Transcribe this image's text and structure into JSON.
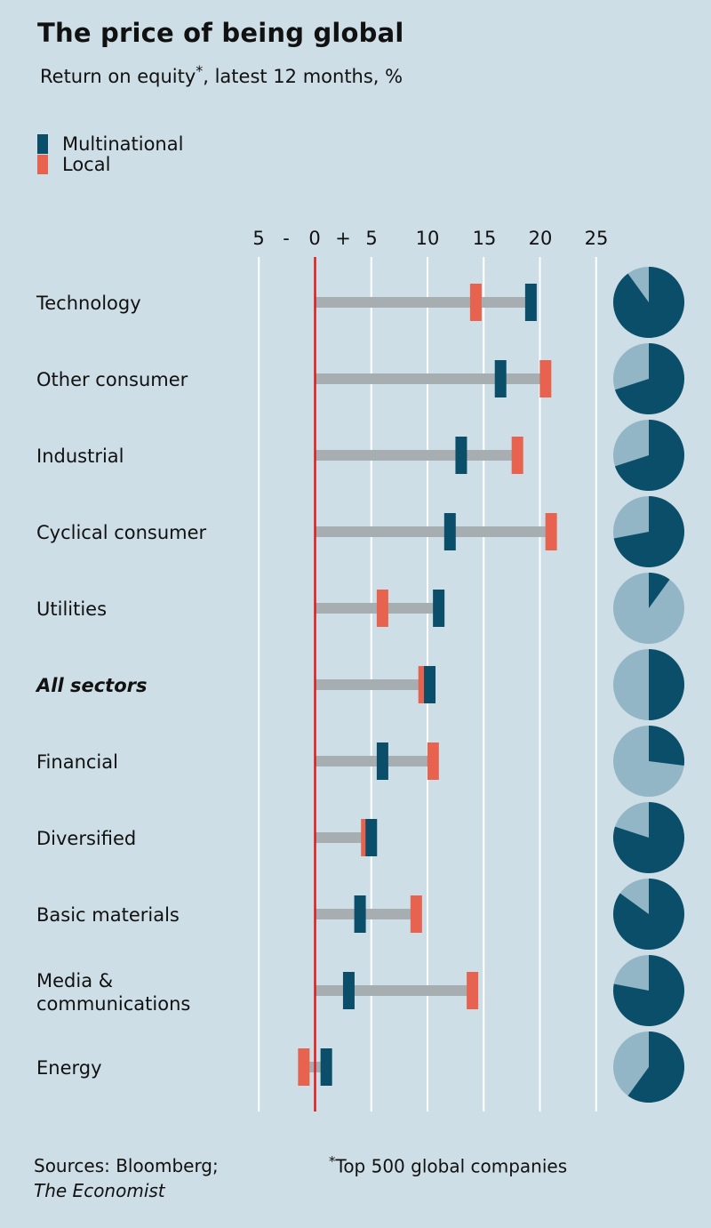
{
  "title": "The price of being global",
  "subtitle": {
    "text": "Return on equity",
    "marker": "*",
    "rest": ", latest 12 months, %"
  },
  "legend": [
    {
      "label": "Multinational",
      "color": "#0b4e69"
    },
    {
      "label": "Local",
      "color": "#e8634f"
    }
  ],
  "colors": {
    "multinational": "#0b4e69",
    "local": "#e8634f",
    "bar": "#a7aeb2",
    "zero": "#e0191c",
    "grid": "#ffffff",
    "pie_rest": "#93b6c6"
  },
  "chart_data": {
    "type": "dumbbell",
    "title": "The price of being global",
    "xlabel": "Return on equity, latest 12 months, %",
    "xlim": [
      -5,
      25
    ],
    "axis_ticks": [
      "5",
      "-",
      "0",
      "+",
      "5",
      "10",
      "15",
      "20",
      "25"
    ],
    "gridlines": [
      -5,
      0,
      5,
      10,
      15,
      20,
      25
    ],
    "categories": [
      {
        "label": "Technology",
        "multinational": 19.2,
        "local": 14.3,
        "pie_multinational_share": 0.9
      },
      {
        "label": "Other consumer",
        "multinational": 16.5,
        "local": 20.5,
        "pie_multinational_share": 0.7
      },
      {
        "label": "Industrial",
        "multinational": 13.0,
        "local": 18.0,
        "pie_multinational_share": 0.7
      },
      {
        "label": "Cyclical consumer",
        "multinational": 12.0,
        "local": 21.0,
        "pie_multinational_share": 0.72
      },
      {
        "label": "Utilities",
        "multinational": 11.0,
        "local": 6.0,
        "pie_multinational_share": 0.1
      },
      {
        "label": "All sectors",
        "multinational": 10.2,
        "local": 9.7,
        "pie_multinational_share": 0.5,
        "emphasis": true
      },
      {
        "label": "Financial",
        "multinational": 6.0,
        "local": 10.5,
        "pie_multinational_share": 0.27
      },
      {
        "label": "Diversified",
        "multinational": 5.0,
        "local": 4.6,
        "pie_multinational_share": 0.8
      },
      {
        "label": "Basic materials",
        "multinational": 4.0,
        "local": 9.0,
        "pie_multinational_share": 0.85
      },
      {
        "label": [
          "Media &",
          "communications"
        ],
        "multinational": 3.0,
        "local": 14.0,
        "pie_multinational_share": 0.78
      },
      {
        "label": "Energy",
        "multinational": 1.0,
        "local": -1.0,
        "pie_multinational_share": 0.6
      }
    ]
  },
  "footer": {
    "sources_prefix": "Sources: Bloomberg;",
    "sources_italic": "The Economist",
    "note_marker": "*",
    "note": "Top 500 global companies"
  }
}
